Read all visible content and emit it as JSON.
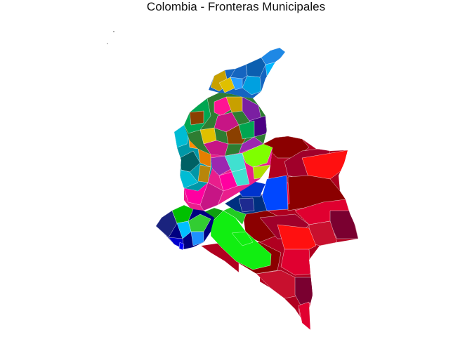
{
  "title": "Colombia - Fronteras Municipales",
  "palette": {
    "caribbean": [
      "#0b5fb0",
      "#1e88e5",
      "#00a0e0",
      "#1565c0",
      "#00b7ff",
      "#2aa0ff"
    ],
    "andes_north": [
      "#c8a000",
      "#e0c000",
      "#8b4000",
      "#2e7d32",
      "#00a651",
      "#ff1493",
      "#c71585",
      "#7b1fa2",
      "#4b0082"
    ],
    "andes_west": [
      "#00bcd4",
      "#0097a7",
      "#ff8c00",
      "#e67e00",
      "#006064",
      "#b8860b"
    ],
    "andes_center": [
      "#ff00a0",
      "#e91e8c",
      "#9c27b0",
      "#7fff00",
      "#40e0d0",
      "#b0e000"
    ],
    "pacific_south": [
      "#1a237e",
      "#000080",
      "#00c000",
      "#32cd32",
      "#1e90ff",
      "#00bfff"
    ],
    "amazon_orinoquia": [
      "#8b0000",
      "#b00020",
      "#e00030",
      "#ff1010",
      "#c8102e",
      "#a0002a",
      "#7a0030"
    ],
    "meta_guaviare": [
      "#0033cc",
      "#0047ff",
      "#003080"
    ],
    "llanos_green": [
      "#11ee11",
      "#22cc22",
      "#0f9f0f"
    ]
  }
}
